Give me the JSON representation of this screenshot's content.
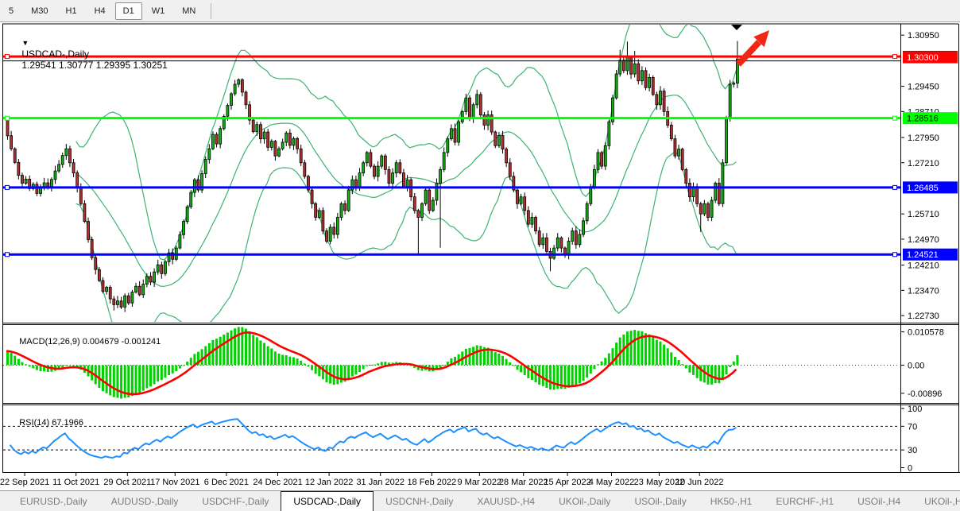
{
  "toolbar": {
    "timeframes": [
      "5",
      "M30",
      "H1",
      "H4",
      "D1",
      "W1",
      "MN"
    ],
    "active": "D1"
  },
  "title": {
    "marker": "▼",
    "symbol": "USDCAD-,Daily",
    "ohlc": "1.29541 1.30777 1.29395 1.30251"
  },
  "price_axis": {
    "min": 1.2257,
    "max": 1.3128,
    "ticks": [
      "1.30950",
      "1.29450",
      "1.28710",
      "1.27950",
      "1.27210",
      "1.25710",
      "1.24970",
      "1.24210",
      "1.23470",
      "1.22730"
    ]
  },
  "hlines": [
    {
      "value": 1.303,
      "label": "1.30300",
      "color": "#ff0000",
      "text_color": "#ffffff"
    },
    {
      "value": 1.28516,
      "label": "1.28516",
      "color": "#00ff00",
      "text_color": "#000000"
    },
    {
      "value": 1.26485,
      "label": "1.26485",
      "color": "#0000ff",
      "text_color": "#ffffff"
    },
    {
      "value": 1.24521,
      "label": "1.24521",
      "color": "#0000ff",
      "text_color": "#ffffff"
    }
  ],
  "current_price": {
    "value": 1.30251,
    "label": "1.30251",
    "color": "#000000",
    "text_color": "#ffffff"
  },
  "macd": {
    "name": "MACD(12,26,9)",
    "values": "0.004679 -0.001241",
    "axis": [
      "0.010578",
      "0.00",
      "-0.00896"
    ],
    "axis_values": [
      0.010578,
      0,
      -0.00896
    ],
    "max": 0.0125,
    "min": -0.0115
  },
  "rsi": {
    "name": "RSI(14)",
    "value": "67.1966",
    "axis": [
      "100",
      "70",
      "30",
      "0"
    ],
    "axis_values": [
      100,
      70,
      30,
      0
    ],
    "levels": [
      70,
      30
    ]
  },
  "chart_data": {
    "type": "candlestick",
    "symbol": "USDCAD",
    "timeframe": "Daily",
    "indicators": [
      "Bollinger Bands(20,2)",
      "MACD(12,26,9)",
      "RSI(14)"
    ],
    "first_open": 1.285,
    "closes": [
      1.28,
      1.2762,
      1.2722,
      1.2684,
      1.2661,
      1.2673,
      1.2645,
      1.2658,
      1.2631,
      1.2648,
      1.2662,
      1.2651,
      1.2672,
      1.2697,
      1.2716,
      1.2742,
      1.2762,
      1.2721,
      1.2691,
      1.2648,
      1.2601,
      1.2549,
      1.2496,
      1.2443,
      1.2408,
      1.2376,
      1.2344,
      1.2356,
      1.2322,
      1.2305,
      1.2316,
      1.2298,
      1.2331,
      1.231,
      1.2342,
      1.2359,
      1.2334,
      1.2365,
      1.2388,
      1.2371,
      1.2401,
      1.2422,
      1.2396,
      1.2431,
      1.2457,
      1.2438,
      1.2471,
      1.251,
      1.2549,
      1.2592,
      1.2634,
      1.2671,
      1.2641,
      1.2689,
      1.2731,
      1.2762,
      1.2804,
      1.2776,
      1.2821,
      1.2857,
      1.2889,
      1.2923,
      1.2951,
      1.2964,
      1.2928,
      1.2891,
      1.2846,
      1.2812,
      1.2833,
      1.2791,
      1.2811,
      1.2766,
      1.2784,
      1.2741,
      1.2762,
      1.2781,
      1.2808,
      1.2772,
      1.2792,
      1.2762,
      1.2721,
      1.2681,
      1.2641,
      1.2601,
      1.2561,
      1.2581,
      1.2521,
      1.2491,
      1.2532,
      1.2511,
      1.2561,
      1.2601,
      1.2581,
      1.2641,
      1.2671,
      1.2651,
      1.2691,
      1.2721,
      1.2751,
      1.2711,
      1.2681,
      1.2711,
      1.2741,
      1.2701,
      1.2661,
      1.2691,
      1.2721,
      1.2691,
      1.2651,
      1.2671,
      1.2621,
      1.2581,
      1.2561,
      1.2601,
      1.2641,
      1.2581,
      1.2611,
      1.2661,
      1.2701,
      1.2751,
      1.2791,
      1.2821,
      1.2781,
      1.2841,
      1.2871,
      1.2911,
      1.2851,
      1.2891,
      1.2921,
      1.2861,
      1.2831,
      1.2861,
      1.2811,
      1.2771,
      1.2801,
      1.2761,
      1.2721,
      1.2681,
      1.2641,
      1.2601,
      1.2621,
      1.2581,
      1.2541,
      1.2561,
      1.2521,
      1.2481,
      1.2501,
      1.2461,
      1.2441,
      1.2471,
      1.2501,
      1.2471,
      1.2451,
      1.2491,
      1.2521,
      1.2481,
      1.2511,
      1.2551,
      1.2601,
      1.2651,
      1.2701,
      1.2751,
      1.2711,
      1.2771,
      1.2841,
      1.2911,
      1.2981,
      1.3021,
      1.2991,
      1.3031,
      1.2981,
      1.3011,
      1.2961,
      1.2991,
      1.2941,
      1.2971,
      1.2921,
      1.2891,
      1.2931,
      1.2871,
      1.2831,
      1.2791,
      1.2741,
      1.2761,
      1.2701,
      1.2661,
      1.2621,
      1.2651,
      1.2601,
      1.2571,
      1.2601,
      1.2561,
      1.2611,
      1.2661,
      1.2601,
      1.2721,
      1.2851,
      1.2951,
      1.29541,
      1.30251
    ],
    "wick_overrides": {
      "29": {
        "low": 1.2288
      },
      "31": {
        "low": 1.2292
      },
      "112": {
        "low": 1.2455
      },
      "118": {
        "low": 1.2472
      },
      "148": {
        "low": 1.2403
      },
      "167": {
        "high": 1.3052
      },
      "169": {
        "high": 1.3076
      },
      "171": {
        "high": 1.3049
      },
      "189": {
        "low": 1.2518
      },
      "199": {
        "high": 1.30777,
        "low": 1.29395
      }
    },
    "time_labels": [
      {
        "text": "22 Sep 2021",
        "i": 5
      },
      {
        "text": "11 Oct 2021",
        "i": 19
      },
      {
        "text": "29 Oct 2021",
        "i": 33
      },
      {
        "text": "17 Nov 2021",
        "i": 46
      },
      {
        "text": "6 Dec 2021",
        "i": 60
      },
      {
        "text": "24 Dec 2021",
        "i": 74
      },
      {
        "text": "12 Jan 2022",
        "i": 88
      },
      {
        "text": "31 Jan 2022",
        "i": 102
      },
      {
        "text": "18 Feb 2022",
        "i": 116
      },
      {
        "text": "9 Mar 2022",
        "i": 129
      },
      {
        "text": "28 Mar 2022",
        "i": 141
      },
      {
        "text": "15 Apr 2022",
        "i": 153
      },
      {
        "text": "4 May 2022",
        "i": 165
      },
      {
        "text": "23 May 2022",
        "i": 178
      },
      {
        "text": "10 Jun 2022",
        "i": 189
      }
    ]
  },
  "markers": {
    "triangle": "black-down-triangle",
    "arrow": "red-up-right-arrow"
  },
  "tabs": {
    "items": [
      "EURUSD-,Daily",
      "AUDUSD-,Daily",
      "USDCHF-,Daily",
      "USDCAD-,Daily",
      "USDCNH-,Daily",
      "XAUUSD-,H4",
      "UKOil-,Daily",
      "USOil-,Daily",
      "HK50-,H1",
      "EURCHF-,H1",
      "USOil-,H4",
      "UKOil-,H4"
    ],
    "active": "USDCAD-,Daily",
    "scroll_left": "◂",
    "scroll_right": "▸"
  },
  "colors": {
    "up": "#0eb30e",
    "down": "#b53131",
    "wick": "#000000",
    "bollinger": "#3cb371",
    "macd_hist": "#00d200",
    "macd_signal": "#ff0000",
    "rsi": "#1e90ff",
    "arrow": "#f22613",
    "frame": "#000000"
  }
}
